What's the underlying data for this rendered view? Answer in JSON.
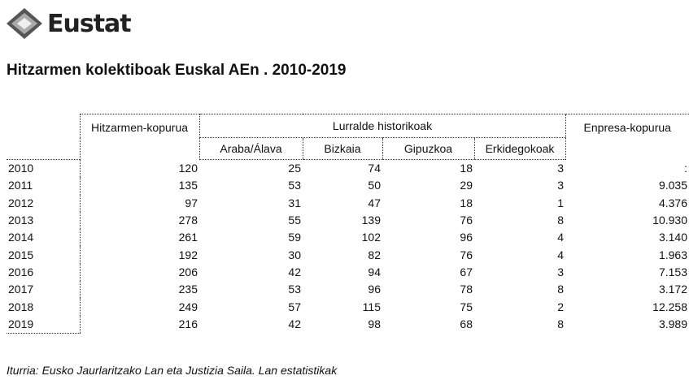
{
  "header": {
    "logo": "Eustat",
    "title": "Hitzarmen kolektiboak Euskal AEn . 2010-2019"
  },
  "table": {
    "group_headers": [
      "Hitzarmen-kopurua",
      "Lurralde historikoak",
      "Enpresa-kopurua"
    ],
    "sub_headers": [
      "Araba/Álava",
      "Bizkaia",
      "Gipuzkoa",
      "Erkidegokoak"
    ],
    "rows": [
      [
        "2010",
        "120",
        "25",
        "74",
        "18",
        "3",
        ":"
      ],
      [
        "2011",
        "135",
        "53",
        "50",
        "29",
        "3",
        "9.035"
      ],
      [
        "2012",
        "97",
        "31",
        "47",
        "18",
        "1",
        "4.376"
      ],
      [
        "2013",
        "278",
        "55",
        "139",
        "76",
        "8",
        "10.930"
      ],
      [
        "2014",
        "261",
        "59",
        "102",
        "96",
        "4",
        "3.140"
      ],
      [
        "2015",
        "192",
        "30",
        "82",
        "76",
        "4",
        "1.963"
      ],
      [
        "2016",
        "206",
        "42",
        "94",
        "67",
        "3",
        "7.153"
      ],
      [
        "2017",
        "235",
        "53",
        "96",
        "78",
        "8",
        "3.172"
      ],
      [
        "2018",
        "249",
        "57",
        "115",
        "75",
        "2",
        "12.258"
      ],
      [
        "2019",
        "216",
        "42",
        "98",
        "68",
        "8",
        "3.989"
      ]
    ]
  },
  "footer": {
    "source": "Iturria: Eusko Jaurlaritzako Lan eta Justizia Saila. Lan estatistikak"
  }
}
